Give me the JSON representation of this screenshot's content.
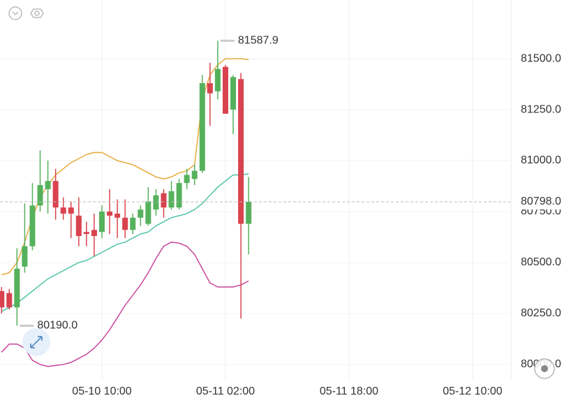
{
  "chart_data": {
    "type": "candlestick",
    "x": [
      "05-09 21:00",
      "05-09 22:00",
      "05-09 23:00",
      "05-10 00:00",
      "05-10 01:00",
      "05-10 02:00",
      "05-10 03:00",
      "05-10 04:00",
      "05-10 05:00",
      "05-10 06:00",
      "05-10 07:00",
      "05-10 08:00",
      "05-10 09:00",
      "05-10 10:00",
      "05-10 11:00",
      "05-10 12:00",
      "05-10 13:00",
      "05-10 14:00",
      "05-10 15:00",
      "05-10 16:00",
      "05-10 17:00",
      "05-10 18:00",
      "05-10 19:00",
      "05-10 20:00",
      "05-10 21:00",
      "05-10 22:00",
      "05-10 23:00",
      "05-11 00:00",
      "05-11 01:00",
      "05-11 02:00",
      "05-11 03:00",
      "05-11 04:00",
      "05-11 05:00"
    ],
    "open": [
      80360,
      80350,
      80280,
      80480,
      80580,
      80780,
      80860,
      80900,
      80770,
      80770,
      80730,
      80650,
      80660,
      80650,
      80750,
      80740,
      80720,
      80660,
      80720,
      80690,
      80760,
      80840,
      80770,
      80770,
      80890,
      80910,
      80950,
      81380,
      81340,
      81460,
      81250,
      81400,
      80690
    ],
    "high": [
      80380,
      80370,
      80570,
      80790,
      80890,
      81050,
      81000,
      80960,
      80820,
      80800,
      80820,
      80700,
      80740,
      80780,
      80860,
      80810,
      80810,
      80740,
      80780,
      80870,
      80860,
      80860,
      80900,
      80910,
      80960,
      80980,
      81420,
      81480,
      81587.9,
      81470,
      81420,
      81430,
      80920
    ],
    "low": [
      80250,
      80270,
      80190,
      80450,
      80560,
      80750,
      80740,
      80710,
      80710,
      80620,
      80580,
      80580,
      80530,
      80620,
      80640,
      80620,
      80620,
      80640,
      80680,
      80680,
      80730,
      80720,
      80760,
      80760,
      80860,
      80880,
      80940,
      81170,
      81300,
      81230,
      81130,
      80225,
      80540
    ],
    "close": [
      80280,
      80280,
      80470,
      80580,
      80780,
      80880,
      80900,
      80770,
      80740,
      80740,
      80630,
      80640,
      80630,
      80750,
      80730,
      80720,
      80660,
      80720,
      80760,
      80800,
      80830,
      80770,
      80850,
      80890,
      80930,
      80950,
      81380,
      81330,
      81450,
      81230,
      81410,
      80690,
      80798
    ],
    "up_color": "#56b15c",
    "down_color": "#d9434f",
    "overlays": [
      {
        "color": "#e8a93a",
        "values": [
          80440,
          80450,
          80500,
          80600,
          80720,
          80820,
          80880,
          80930,
          80960,
          80990,
          81010,
          81030,
          81040,
          81040,
          81020,
          81000,
          80990,
          80980,
          80960,
          80940,
          80920,
          80910,
          80920,
          80940,
          80950,
          80980,
          81300,
          81420,
          81470,
          81500,
          81500,
          81500,
          81495
        ]
      },
      {
        "color": "#4fc4a8",
        "values": [
          80260,
          80280,
          80300,
          80330,
          80360,
          80390,
          80420,
          80440,
          80460,
          80480,
          80500,
          80510,
          80530,
          80550,
          80570,
          80590,
          80600,
          80620,
          80640,
          80650,
          80680,
          80700,
          80720,
          80730,
          80740,
          80760,
          80790,
          80830,
          80870,
          80900,
          80930,
          80930,
          80935
        ]
      },
      {
        "color": "#c9459b",
        "values": [
          80060,
          80100,
          80100,
          80080,
          80020,
          80000,
          79990,
          79995,
          80000,
          80010,
          80030,
          80050,
          80080,
          80120,
          80170,
          80230,
          80290,
          80340,
          80390,
          80450,
          80520,
          80580,
          80600,
          80595,
          80580,
          80540,
          80470,
          80400,
          80380,
          80380,
          80380,
          80390,
          80410
        ]
      }
    ],
    "max_label": "81587.9",
    "min_label": "80190.0",
    "last_label": "80798.0",
    "xlim": [
      "05-09 20:48",
      "05-12 14:48"
    ],
    "xticks": [
      "05-10 10:00",
      "05-11 02:00",
      "05-11 18:00",
      "05-12 10:00"
    ],
    "ylim": [
      79921,
      81788
    ],
    "yticks": [
      {
        "value": 80000,
        "label": "80000.0"
      },
      {
        "value": 80250,
        "label": "80250.0"
      },
      {
        "value": 80500,
        "label": "80500.0"
      },
      {
        "value": 80750,
        "label": "80750.0"
      },
      {
        "value": 81000,
        "label": "81000.0"
      },
      {
        "value": 81250,
        "label": "81250.0"
      },
      {
        "value": 81500,
        "label": "81500.0"
      }
    ],
    "grid": true
  }
}
